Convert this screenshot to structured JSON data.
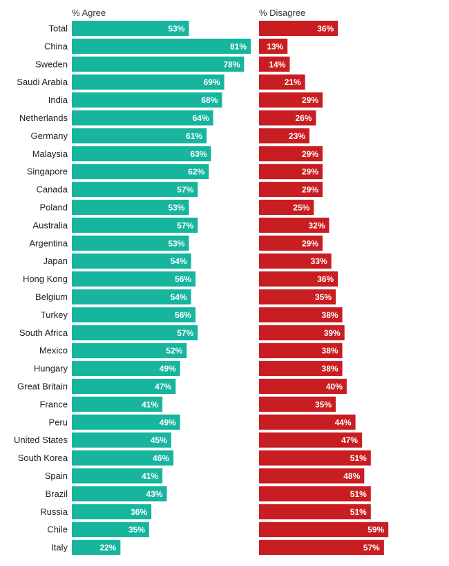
{
  "chart_data": {
    "type": "bar",
    "orientation": "horizontal",
    "layout": "side-by-side panels",
    "value_format": "{v}%",
    "categories": [
      "Total",
      "China",
      "Sweden",
      "Saudi Arabia",
      "India",
      "Netherlands",
      "Germany",
      "Malaysia",
      "Singapore",
      "Canada",
      "Poland",
      "Australia",
      "Argentina",
      "Japan",
      "Hong Kong",
      "Belgium",
      "Turkey",
      "South Africa",
      "Mexico",
      "Hungary",
      "Great Britain",
      "France",
      "Peru",
      "United States",
      "South Korea",
      "Spain",
      "Brazil",
      "Russia",
      "Chile",
      "Italy"
    ],
    "series": [
      {
        "name": "% Agree",
        "color": "#17b59e",
        "values": [
          53,
          81,
          78,
          69,
          68,
          64,
          61,
          63,
          62,
          57,
          53,
          57,
          53,
          54,
          56,
          54,
          56,
          57,
          52,
          49,
          47,
          41,
          49,
          45,
          46,
          41,
          43,
          36,
          35,
          22
        ]
      },
      {
        "name": "% Disagree",
        "color": "#c81e22",
        "values": [
          36,
          13,
          14,
          21,
          29,
          26,
          23,
          29,
          29,
          29,
          25,
          32,
          29,
          33,
          36,
          35,
          38,
          39,
          38,
          38,
          40,
          35,
          44,
          47,
          51,
          48,
          51,
          51,
          59,
          57
        ]
      }
    ],
    "xlim": [
      0,
      81
    ]
  }
}
